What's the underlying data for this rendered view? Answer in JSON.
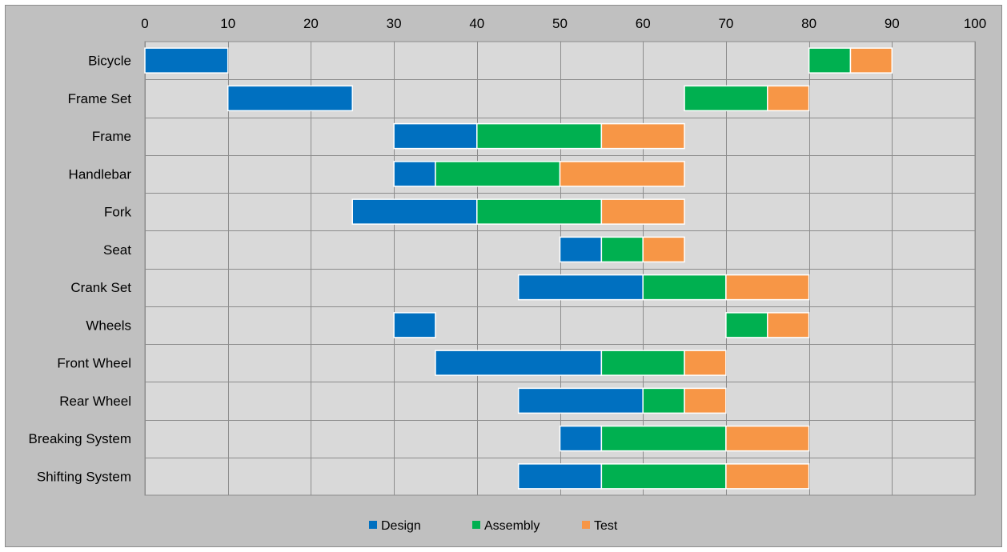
{
  "chart_data": {
    "type": "bar",
    "orientation": "horizontal-stacked-gantt",
    "title": "",
    "xlabel": "",
    "ylabel": "",
    "xlim": [
      0,
      100
    ],
    "x_ticks": [
      0,
      10,
      20,
      30,
      40,
      50,
      60,
      70,
      80,
      90,
      100
    ],
    "x_axis_position": "top",
    "grid": true,
    "legend_position": "bottom",
    "categories": [
      "Bicycle",
      "Frame Set",
      "Frame",
      "Handlebar",
      "Fork",
      "Seat",
      "Crank Set",
      "Wheels",
      "Front Wheel",
      "Rear Wheel",
      "Breaking System",
      "Shifting System"
    ],
    "series": [
      {
        "name": "Design",
        "color": "#0070c0",
        "ranges": [
          [
            0,
            10
          ],
          [
            10,
            25
          ],
          [
            30,
            40
          ],
          [
            30,
            35
          ],
          [
            25,
            40
          ],
          [
            50,
            55
          ],
          [
            45,
            60
          ],
          [
            30,
            35
          ],
          [
            35,
            55
          ],
          [
            45,
            60
          ],
          [
            50,
            55
          ],
          [
            45,
            55
          ]
        ]
      },
      {
        "name": "Assembly",
        "color": "#00b050",
        "ranges": [
          [
            80,
            85
          ],
          [
            65,
            75
          ],
          [
            40,
            55
          ],
          [
            35,
            50
          ],
          [
            40,
            55
          ],
          [
            55,
            60
          ],
          [
            60,
            70
          ],
          [
            70,
            75
          ],
          [
            55,
            65
          ],
          [
            60,
            65
          ],
          [
            55,
            70
          ],
          [
            55,
            70
          ]
        ]
      },
      {
        "name": "Test",
        "color": "#f79646",
        "ranges": [
          [
            85,
            90
          ],
          [
            75,
            80
          ],
          [
            55,
            65
          ],
          [
            50,
            65
          ],
          [
            55,
            65
          ],
          [
            60,
            65
          ],
          [
            70,
            80
          ],
          [
            75,
            80
          ],
          [
            65,
            70
          ],
          [
            65,
            70
          ],
          [
            70,
            80
          ],
          [
            70,
            80
          ]
        ]
      }
    ],
    "colors": {
      "plot_background": "#d9d9d9",
      "frame_background": "#c0c0c0",
      "gridline": "#8c8c8c",
      "bar_border": "#ffffff"
    }
  }
}
